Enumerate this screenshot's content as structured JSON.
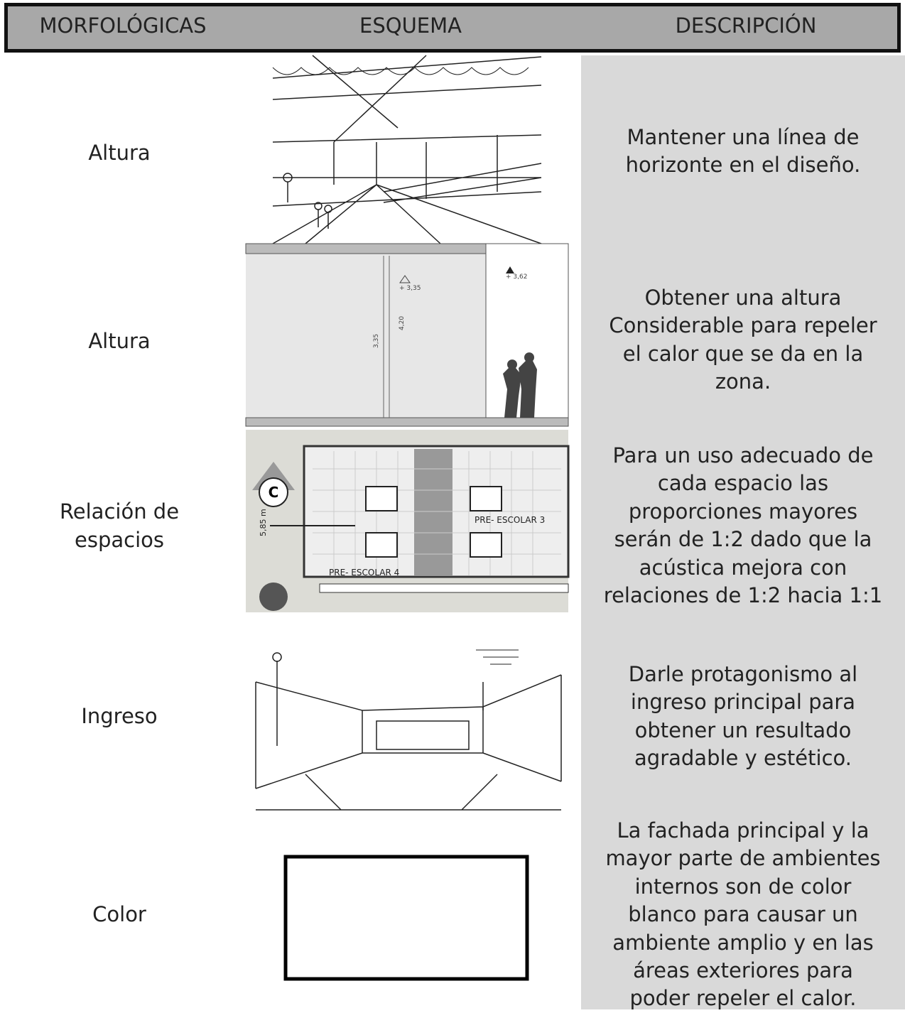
{
  "header": {
    "columns": [
      "MORFOLÓGICAS",
      "ESQUEMA",
      "DESCRIPCIÓN"
    ]
  },
  "rows": [
    {
      "label": [
        "Altura"
      ],
      "description": [
        "Mantener una línea de",
        "horizonte en el diseño."
      ]
    },
    {
      "label": [
        "Altura"
      ],
      "description": [
        "Obtener una altura",
        "Considerable para repeler",
        "el calor que se da en la",
        "zona."
      ],
      "drawing_labels": [
        "+ 3,35",
        "+ 3,62",
        "3,35",
        "4,20"
      ]
    },
    {
      "label": [
        "Relación de",
        "espacios"
      ],
      "description": [
        "Para un uso adecuado de",
        "cada espacio las",
        "proporciones mayores",
        "serán de 1:2 dado que la",
        "acústica mejora con",
        "relaciones de 1:2 hacia 1:1"
      ],
      "drawing_labels": [
        "PRE- ESCOLAR 3",
        "PRE- ESCOLAR 4",
        "5,85 m",
        "C"
      ]
    },
    {
      "label": [
        "Ingreso"
      ],
      "description": [
        "Darle protagonismo al",
        "ingreso principal para",
        "obtener un resultado",
        "agradable y estético."
      ]
    },
    {
      "label": [
        "Color"
      ],
      "description": [
        "La fachada principal y la",
        "mayor parte de ambientes",
        "internos son de color",
        "blanco para causar un",
        "ambiente amplio y en las",
        "áreas exteriores para",
        "poder repeler el calor."
      ]
    }
  ]
}
